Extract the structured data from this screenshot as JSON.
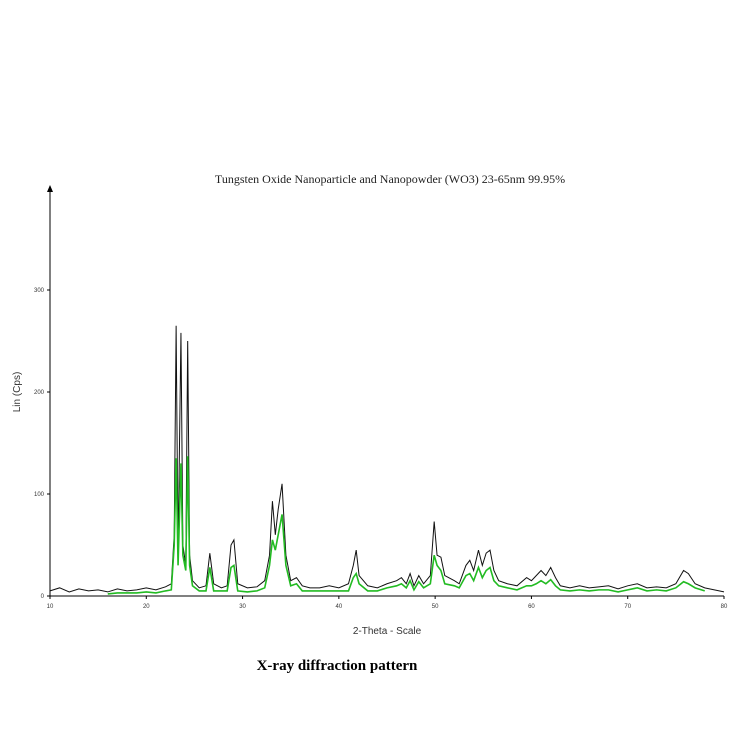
{
  "chart_data": {
    "type": "line",
    "title": "Tungsten Oxide Nanoparticle and Nanopowder (WO3)  23-65nm  99.95%",
    "x_label": "2-Theta - Scale",
    "y_label": "Lin (Cps)",
    "caption": "X-ray diffraction pattern",
    "xlim": [
      10,
      80
    ],
    "ylim": [
      0,
      400
    ],
    "xticks": [
      10,
      20,
      30,
      40,
      50,
      60,
      70,
      80
    ],
    "yticks": [
      0,
      100,
      200,
      300
    ],
    "x": [
      10,
      11,
      12,
      13,
      14,
      15,
      16,
      17,
      18,
      19,
      20,
      21,
      22,
      22.6,
      22.9,
      23.1,
      23.3,
      23.6,
      23.8,
      24.1,
      24.3,
      24.5,
      24.8,
      25.5,
      26.2,
      26.6,
      27,
      27.8,
      28.4,
      28.8,
      29.1,
      29.5,
      30.5,
      31.5,
      32.3,
      32.8,
      33.1,
      33.4,
      33.7,
      34.1,
      34.5,
      35,
      35.6,
      36.2,
      37,
      38,
      39,
      40,
      41,
      41.5,
      41.8,
      42.1,
      43,
      44,
      45,
      46,
      46.5,
      47,
      47.4,
      47.8,
      48.3,
      48.8,
      49.5,
      49.9,
      50.2,
      50.6,
      51,
      52,
      52.5,
      53.2,
      53.6,
      54,
      54.5,
      54.9,
      55.3,
      55.7,
      56.1,
      56.6,
      57.5,
      58.5,
      59.5,
      60,
      60.5,
      61,
      61.5,
      62,
      62.5,
      63,
      64,
      65,
      66,
      67,
      68,
      69,
      70,
      71,
      72,
      73,
      74,
      75,
      75.8,
      76.3,
      77,
      78,
      79,
      80
    ],
    "series": [
      {
        "color": "#111111",
        "values": [
          5,
          8,
          4,
          7,
          5,
          6,
          4,
          7,
          5,
          6,
          8,
          6,
          9,
          12,
          60,
          265,
          40,
          258,
          50,
          30,
          250,
          40,
          15,
          8,
          10,
          42,
          12,
          8,
          10,
          50,
          55,
          12,
          8,
          9,
          15,
          40,
          93,
          60,
          85,
          110,
          40,
          15,
          18,
          10,
          8,
          8,
          10,
          8,
          12,
          30,
          45,
          20,
          10,
          8,
          12,
          15,
          18,
          12,
          22,
          10,
          20,
          12,
          20,
          73,
          40,
          38,
          20,
          15,
          12,
          30,
          35,
          25,
          45,
          30,
          42,
          45,
          25,
          15,
          12,
          10,
          18,
          15,
          20,
          25,
          20,
          28,
          18,
          10,
          8,
          10,
          8,
          9,
          10,
          7,
          10,
          12,
          8,
          9,
          8,
          12,
          25,
          22,
          12,
          8,
          6,
          4
        ]
      },
      {
        "color": "#22bb22",
        "values": [
          null,
          null,
          null,
          null,
          null,
          null,
          2,
          3,
          3,
          3,
          4,
          3,
          5,
          6,
          50,
          135,
          30,
          130,
          40,
          25,
          137,
          30,
          10,
          5,
          5,
          28,
          5,
          5,
          5,
          28,
          30,
          5,
          4,
          5,
          8,
          30,
          55,
          45,
          60,
          80,
          30,
          10,
          12,
          5,
          5,
          5,
          5,
          5,
          5,
          18,
          22,
          12,
          5,
          5,
          8,
          10,
          12,
          8,
          15,
          6,
          14,
          8,
          12,
          40,
          30,
          25,
          12,
          10,
          8,
          20,
          22,
          15,
          28,
          18,
          25,
          28,
          15,
          10,
          8,
          6,
          10,
          10,
          12,
          15,
          12,
          16,
          10,
          6,
          5,
          6,
          5,
          6,
          6,
          4,
          6,
          8,
          5,
          6,
          5,
          8,
          14,
          12,
          8,
          5,
          null,
          null
        ]
      }
    ]
  }
}
